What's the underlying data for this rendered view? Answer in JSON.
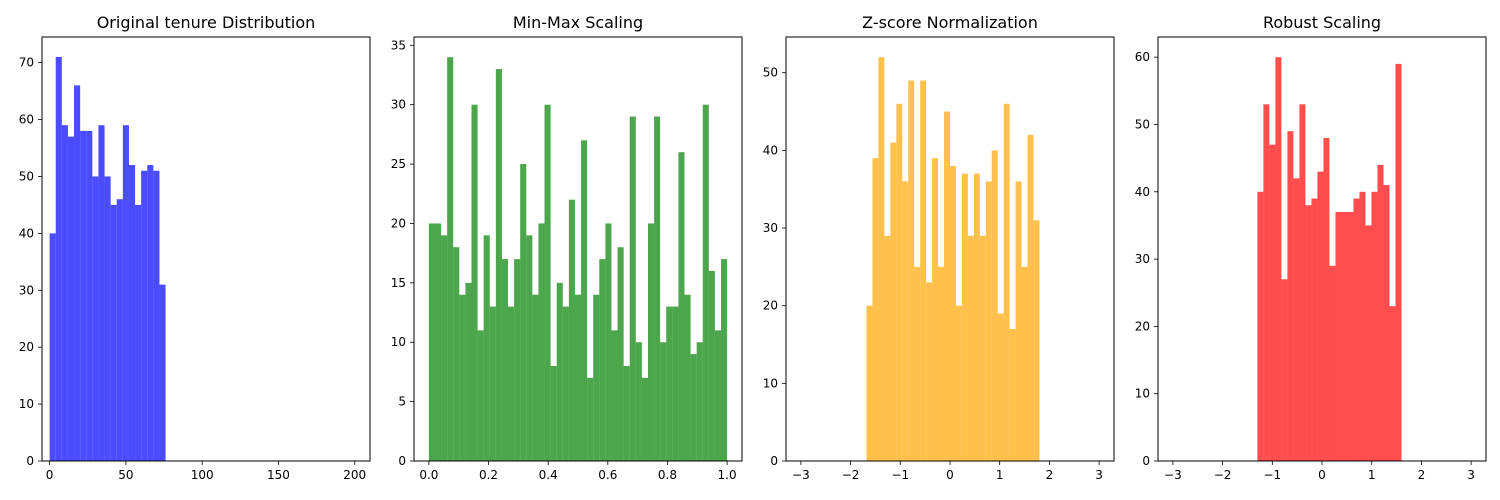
{
  "chart_data": [
    {
      "type": "bar",
      "title": "Original tenure Distribution",
      "color": "#0000ff",
      "opacity": 0.7,
      "xlim": [
        -5,
        210
      ],
      "ylim": [
        0,
        74.5
      ],
      "xticks": [
        0,
        50,
        100,
        150,
        200
      ],
      "yticks": [
        0,
        10,
        20,
        30,
        40,
        50,
        60,
        70
      ],
      "bin_range": [
        0,
        76
      ],
      "values": [
        40,
        71,
        59,
        57,
        66,
        58,
        58,
        50,
        59,
        50,
        45,
        46,
        59,
        52,
        45,
        51,
        52,
        51,
        31
      ]
    },
    {
      "type": "bar",
      "title": "Min-Max Scaling",
      "color": "#008000",
      "opacity": 0.7,
      "xlim": [
        -0.05,
        1.05
      ],
      "ylim": [
        0,
        35.7
      ],
      "xticks": [
        0.0,
        0.2,
        0.4,
        0.6,
        0.8,
        1.0
      ],
      "xtick_labels": [
        "0.0",
        "0.2",
        "0.4",
        "0.6",
        "0.8",
        "1.0"
      ],
      "yticks": [
        0,
        5,
        10,
        15,
        20,
        25,
        30,
        35
      ],
      "bin_range": [
        0,
        1
      ],
      "values": [
        20,
        20,
        19,
        34,
        18,
        14,
        15,
        30,
        11,
        19,
        13,
        33,
        17,
        13,
        17,
        25,
        19,
        14,
        20,
        30,
        8,
        15,
        13,
        22,
        14,
        27,
        7,
        14,
        17,
        20,
        11,
        18,
        8,
        29,
        10,
        7,
        20,
        29,
        10,
        13,
        13,
        26,
        14,
        9,
        10,
        30,
        16,
        11,
        17
      ]
    },
    {
      "type": "bar",
      "title": "Z-score Normalization",
      "color": "#ffa500",
      "opacity": 0.7,
      "xlim": [
        -3.3,
        3.3
      ],
      "ylim": [
        0,
        54.6
      ],
      "xticks": [
        -3,
        -2,
        -1,
        0,
        1,
        2,
        3
      ],
      "xtick_labels": [
        "−3",
        "−2",
        "−1",
        "0",
        "1",
        "2",
        "3"
      ],
      "yticks": [
        0,
        10,
        20,
        30,
        40,
        50
      ],
      "bin_range": [
        -1.68,
        1.8
      ],
      "values": [
        20,
        39,
        52,
        29,
        41,
        46,
        36,
        49,
        25,
        49,
        23,
        39,
        25,
        45,
        38,
        20,
        37,
        29,
        37,
        29,
        36,
        40,
        19,
        46,
        17,
        36,
        25,
        42,
        31
      ]
    },
    {
      "type": "bar",
      "title": "Robust Scaling",
      "color": "#ff0000",
      "opacity": 0.7,
      "xlim": [
        -3.3,
        3.3
      ],
      "ylim": [
        0,
        63
      ],
      "xticks": [
        -3,
        -2,
        -1,
        0,
        1,
        2,
        3
      ],
      "xtick_labels": [
        "−3",
        "−2",
        "−1",
        "0",
        "1",
        "2",
        "3"
      ],
      "yticks": [
        0,
        10,
        20,
        30,
        40,
        50,
        60
      ],
      "bin_range": [
        -1.3,
        1.6
      ],
      "values": [
        40,
        53,
        47,
        60,
        27,
        49,
        42,
        53,
        38,
        39,
        43,
        48,
        29,
        37,
        37,
        37,
        39,
        40,
        35,
        40,
        44,
        41,
        23,
        59
      ]
    }
  ]
}
